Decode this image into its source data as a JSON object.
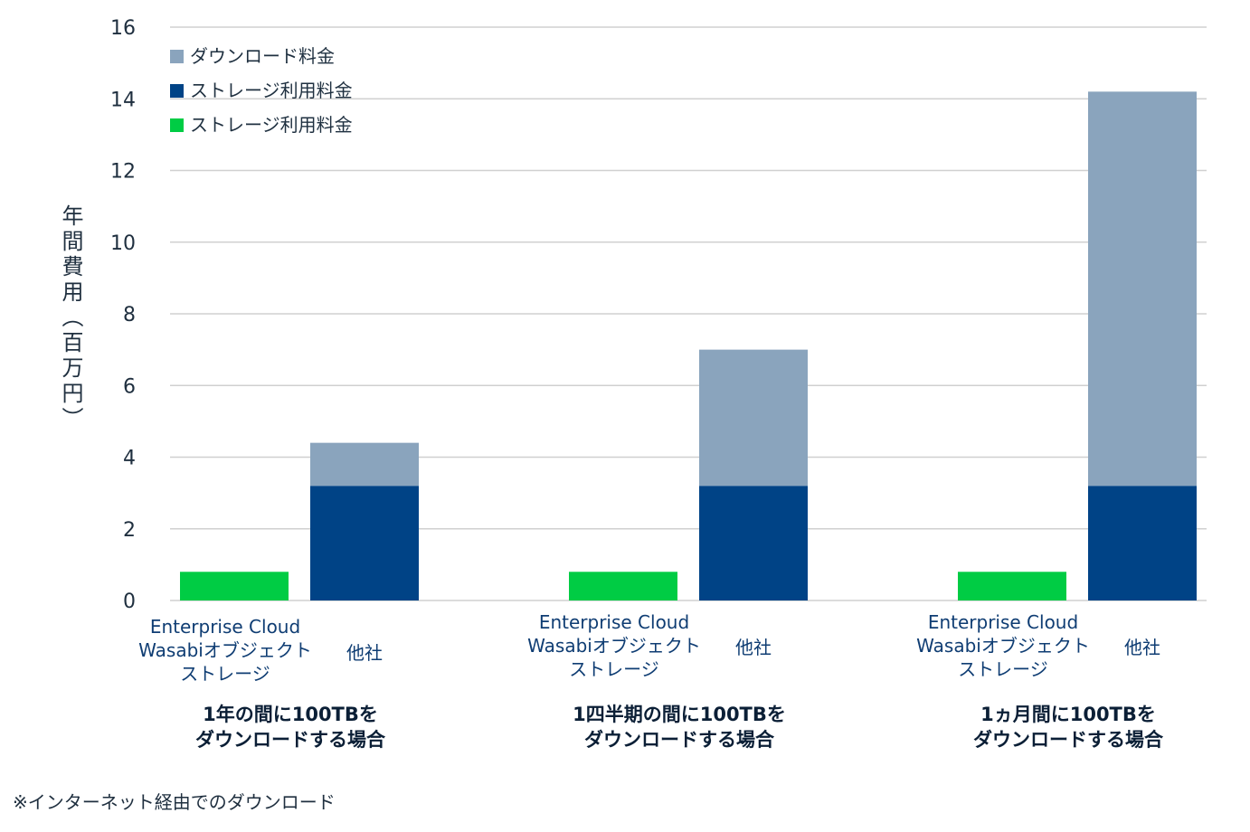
{
  "chart_data": {
    "type": "bar",
    "stacked": true,
    "ylabel": "年間費用（百万円）",
    "ylim": [
      0,
      16
    ],
    "yticks": [
      0,
      2,
      4,
      6,
      8,
      10,
      12,
      14,
      16
    ],
    "grid": true,
    "legend_position": "top-left",
    "legend": [
      {
        "label": "ダウンロード料金",
        "color": "#8aa4bd"
      },
      {
        "label": "ストレージ利用料金",
        "color": "#004386"
      },
      {
        "label": "ストレージ利用料金",
        "color": "#00cc44"
      }
    ],
    "groups": [
      {
        "label_lines": [
          "1年の間に100TBを",
          "ダウンロードする場合"
        ],
        "bars": [
          {
            "label_lines": [
              "Enterprise Cloud",
              "Wasabiオブジェクト",
              "ストレージ"
            ],
            "segments": [
              {
                "value": 0.8,
                "color": "#00cc44"
              }
            ]
          },
          {
            "label_lines": [
              "他社"
            ],
            "segments": [
              {
                "value": 3.2,
                "color": "#004386"
              },
              {
                "value": 1.2,
                "color": "#8aa4bd"
              }
            ]
          }
        ]
      },
      {
        "label_lines": [
          "1四半期の間に100TBを",
          "ダウンロードする場合"
        ],
        "bars": [
          {
            "label_lines": [
              "Enterprise Cloud",
              "Wasabiオブジェクト",
              "ストレージ"
            ],
            "segments": [
              {
                "value": 0.8,
                "color": "#00cc44"
              }
            ]
          },
          {
            "label_lines": [
              "他社"
            ],
            "segments": [
              {
                "value": 3.2,
                "color": "#004386"
              },
              {
                "value": 3.8,
                "color": "#8aa4bd"
              }
            ]
          }
        ]
      },
      {
        "label_lines": [
          "1ヵ月間に100TBを",
          "ダウンロードする場合"
        ],
        "bars": [
          {
            "label_lines": [
              "Enterprise Cloud",
              "Wasabiオブジェクト",
              "ストレージ"
            ],
            "segments": [
              {
                "value": 0.8,
                "color": "#00cc44"
              }
            ]
          },
          {
            "label_lines": [
              "他社"
            ],
            "segments": [
              {
                "value": 3.2,
                "color": "#004386"
              },
              {
                "value": 11.0,
                "color": "#8aa4bd"
              }
            ]
          }
        ]
      }
    ]
  },
  "footnote": "※インターネット経由でのダウンロード"
}
